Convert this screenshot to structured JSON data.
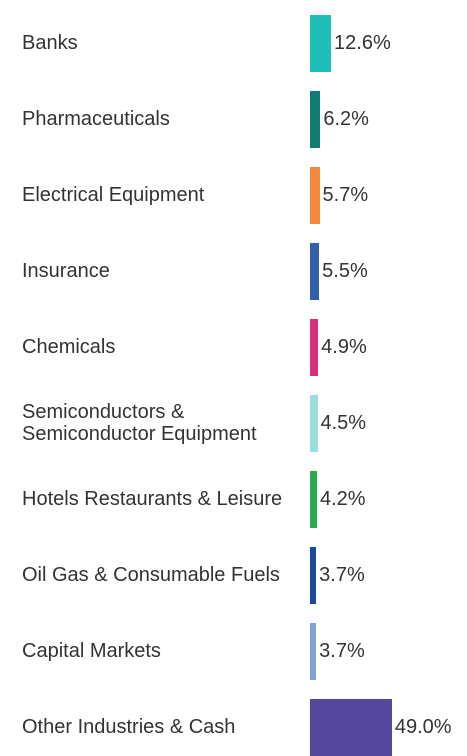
{
  "chart_data": {
    "type": "bar",
    "orientation": "horizontal",
    "categories": [
      "Banks",
      "Pharmaceuticals",
      "Electrical Equipment",
      "Insurance",
      "Chemicals",
      "Semiconductors & Semiconductor Equipment",
      "Hotels Restaurants & Leisure",
      "Oil Gas & Consumable Fuels",
      "Capital Markets",
      "Other Industries & Cash"
    ],
    "values": [
      12.6,
      6.2,
      5.7,
      5.5,
      4.9,
      4.5,
      4.2,
      3.7,
      3.7,
      49.0
    ],
    "value_labels": [
      "12.6%",
      "6.2%",
      "5.7%",
      "5.5%",
      "4.9%",
      "4.5%",
      "4.2%",
      "3.7%",
      "3.7%",
      "49.0%"
    ],
    "colors": [
      "#1fbfb8",
      "#0f7b73",
      "#f5883d",
      "#2f5fad",
      "#d32f7c",
      "#9cdde0",
      "#2aa852",
      "#1b4a9c",
      "#7fa3d6",
      "#55479b"
    ]
  }
}
